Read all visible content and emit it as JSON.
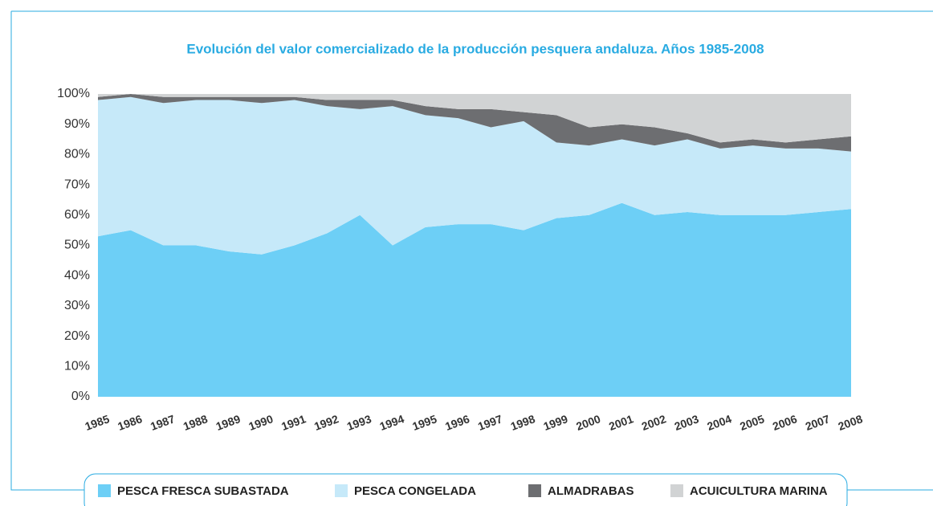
{
  "chart_data": {
    "type": "stacked_area",
    "title": "Evolución del valor comercializado de la producción pesquera andaluza. Años 1985-2008",
    "categories": [
      "1985",
      "1986",
      "1987",
      "1988",
      "1989",
      "1990",
      "1991",
      "1992",
      "1993",
      "1994",
      "1995",
      "1996",
      "1997",
      "1998",
      "1999",
      "2000",
      "2001",
      "2002",
      "2003",
      "2004",
      "2005",
      "2006",
      "2007",
      "2008"
    ],
    "series": [
      {
        "name": "PESCA FRESCA SUBASTADA",
        "color": "#6dcff6",
        "values": [
          53,
          55,
          50,
          50,
          48,
          47,
          50,
          54,
          60,
          50,
          56,
          57,
          57,
          55,
          59,
          60,
          64,
          60,
          61,
          60,
          60,
          60,
          61,
          62
        ]
      },
      {
        "name": "PESCA CONGELADA",
        "color": "#c6e9f9",
        "values": [
          45,
          44,
          47,
          48,
          50,
          50,
          48,
          42,
          35,
          46,
          37,
          35,
          32,
          36,
          25,
          23,
          21,
          23,
          24,
          22,
          23,
          22,
          21,
          19
        ]
      },
      {
        "name": "ALMADRABAS",
        "color": "#6d6e71",
        "values": [
          1,
          1,
          2,
          1,
          1,
          2,
          1,
          2,
          3,
          2,
          3,
          3,
          6,
          3,
          9,
          6,
          5,
          6,
          2,
          2,
          2,
          2,
          3,
          5
        ]
      },
      {
        "name": "ACUICULTURA MARINA",
        "color": "#d1d3d4",
        "values": [
          1,
          0,
          1,
          1,
          1,
          1,
          1,
          2,
          2,
          2,
          4,
          5,
          5,
          6,
          7,
          11,
          10,
          11,
          13,
          16,
          15,
          16,
          15,
          14
        ]
      }
    ],
    "ylim": [
      0,
      100
    ],
    "yticks": [
      {
        "value": 0,
        "label": "0%"
      },
      {
        "value": 10,
        "label": "10%"
      },
      {
        "value": 20,
        "label": "20%"
      },
      {
        "value": 30,
        "label": "30%"
      },
      {
        "value": 40,
        "label": "40%"
      },
      {
        "value": 50,
        "label": "50%"
      },
      {
        "value": 60,
        "label": "60%"
      },
      {
        "value": 70,
        "label": "70%"
      },
      {
        "value": 80,
        "label": "80%"
      },
      {
        "value": 90,
        "label": "90%"
      },
      {
        "value": 100,
        "label": "100%"
      }
    ],
    "title_color": "#29abe2"
  }
}
